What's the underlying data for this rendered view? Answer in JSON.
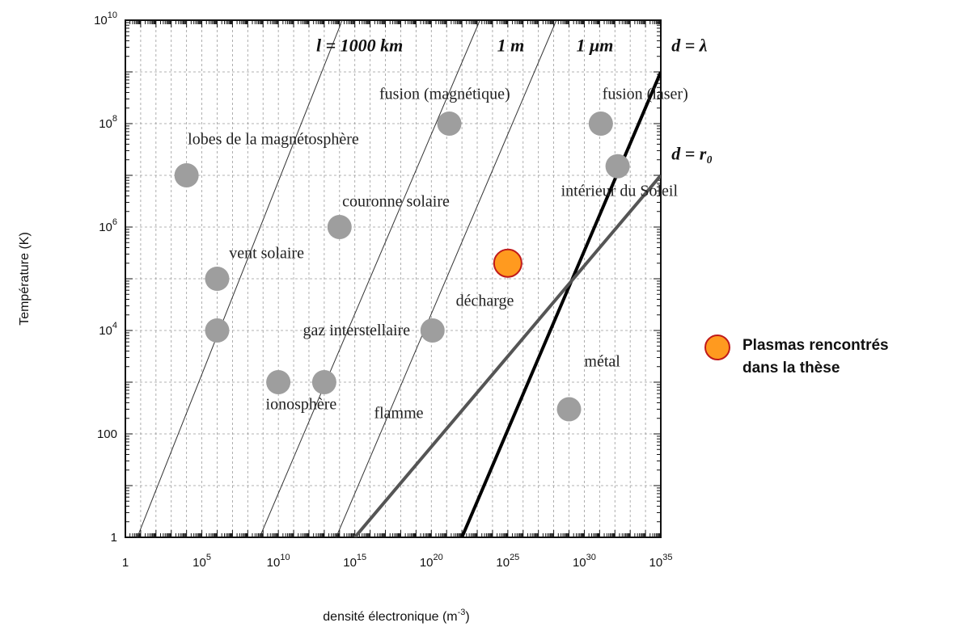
{
  "chart_data": {
    "type": "scatter",
    "xlabel": "densité électronique (m",
    "xlabel_sup": "-3",
    "xlabel_close": ")",
    "ylabel": "Température (K)",
    "x_scale": "log",
    "y_scale": "log",
    "xlim": [
      1,
      1e+35
    ],
    "ylim": [
      1,
      10000000000.0
    ],
    "grid": true,
    "x_ticks": [
      {
        "value": 1,
        "base": "1",
        "sup": ""
      },
      {
        "value": 100000.0,
        "base": "10",
        "sup": "5"
      },
      {
        "value": 10000000000.0,
        "base": "10",
        "sup": "10"
      },
      {
        "value": 1000000000000000.0,
        "base": "10",
        "sup": "15"
      },
      {
        "value": 1e+20,
        "base": "10",
        "sup": "20"
      },
      {
        "value": 1e+25,
        "base": "10",
        "sup": "25"
      },
      {
        "value": 1e+30,
        "base": "10",
        "sup": "30"
      },
      {
        "value": 1e+35,
        "base": "10",
        "sup": "35"
      }
    ],
    "y_ticks": [
      {
        "value": 1,
        "base": "1",
        "sup": ""
      },
      {
        "value": 100,
        "base": "100",
        "sup": ""
      },
      {
        "value": 10000.0,
        "base": "10",
        "sup": "4"
      },
      {
        "value": 1000000.0,
        "base": "10",
        "sup": "6"
      },
      {
        "value": 100000000.0,
        "base": "10",
        "sup": "8"
      },
      {
        "value": 10000000000.0,
        "base": "10",
        "sup": "10"
      }
    ],
    "points": [
      {
        "label": "lobes de la magnétosphère",
        "x": 10000.0,
        "y": 10000000.0,
        "highlight": false
      },
      {
        "label": "couronne solaire",
        "x": 100000000000000.0,
        "y": 1000000.0,
        "highlight": false
      },
      {
        "label": "vent solaire",
        "x": 1000000.0,
        "y": 100000.0,
        "highlight": false
      },
      {
        "label": "gaz interstellaire",
        "x": 1000000.0,
        "y": 10000.0,
        "highlight": false
      },
      {
        "label": "ionosphère",
        "x": 10000000000.0,
        "y": 1000.0,
        "highlight": false
      },
      {
        "label": "flamme",
        "x": 10000000000000.0,
        "y": 1000.0,
        "highlight": false
      },
      {
        "label": "fusion (magnétique)",
        "x": 1.5e+21,
        "y": 100000000.0,
        "highlight": false
      },
      {
        "label": "fusion (laser)",
        "x": 1.2e+31,
        "y": 100000000.0,
        "highlight": false
      },
      {
        "label": "intérieur du Soleil",
        "x": 1.5e+32,
        "y": 15000000.0,
        "highlight": false
      },
      {
        "label": "décharge",
        "x": 1.2e+20,
        "y": 10000.0,
        "highlight": false
      },
      {
        "label": "métal",
        "x": 1e+29,
        "y": 300,
        "highlight": false
      },
      {
        "label": "",
        "x": 1e+25,
        "y": 200000.0,
        "highlight": true
      }
    ],
    "annotations": [
      {
        "text": "lobes de la magnétosphère",
        "x": 12000.0,
        "y": 40000000.0
      },
      {
        "text": "couronne solaire",
        "x": 150000000000000.0,
        "y": 2500000.0
      },
      {
        "text": "vent solaire",
        "x": 6000000.0,
        "y": 250000.0
      },
      {
        "text": "gaz interstellaire",
        "x": 400000000000.0,
        "y": 8000.0
      },
      {
        "text": "ionosphère",
        "x": 1500000000.0,
        "y": 300.0
      },
      {
        "text": "flamme",
        "x": 1.8e+16,
        "y": 200.0
      },
      {
        "text": "fusion (magnétique)",
        "x": 4e+16,
        "y": 300000000.0
      },
      {
        "text": "fusion (laser)",
        "x": 1.5e+31,
        "y": 300000000.0
      },
      {
        "text": "intérieur du Soleil",
        "x": 3e+28,
        "y": 4000000.0
      },
      {
        "text": "décharge",
        "x": 4e+21,
        "y": 30000.0
      },
      {
        "text": "métal",
        "x": 1e+30,
        "y": 2000.0
      }
    ],
    "lines": [
      {
        "label": "l = 1000 km",
        "x": [
          6,
          150000000000000.0
        ],
        "y": [
          1,
          10000000000.0
        ],
        "color": "#333333",
        "width": 1
      },
      {
        "label": "1 m",
        "x": [
          600000000.0,
          1.5e+23
        ],
        "y": [
          1,
          10000000000.0
        ],
        "color": "#333333",
        "width": 1
      },
      {
        "label": "1 μm",
        "x": [
          60000000000000.0,
          1.5e+28
        ],
        "y": [
          1,
          10000000000.0
        ],
        "color": "#333333",
        "width": 1
      },
      {
        "label": "d = λ",
        "x": [
          1e+22,
          1e+35
        ],
        "y": [
          1,
          1000000000.0
        ],
        "color": "#000000",
        "width": 4
      },
      {
        "label": "d = r₀",
        "x": [
          1000000000000000.0,
          1e+35
        ],
        "y": [
          1,
          10000000.0
        ],
        "color": "#555555",
        "width": 4
      }
    ],
    "line_labels": [
      {
        "text": "l = 1000 km",
        "x": 3000000000000.0,
        "y": 2500000000.0
      },
      {
        "text": "1 m",
        "x": 2e+24,
        "y": 2500000000.0
      },
      {
        "text": "1 μm",
        "x": 3e+29,
        "y": 2500000000.0
      },
      {
        "text": "d = λ",
        "x": 5e+35,
        "y": 2500000000.0
      },
      {
        "text": "d = r₀",
        "x": 5e+35,
        "y": 20000000.0
      }
    ],
    "colors": {
      "point": "#9e9e9e",
      "highlight_fill": "#ff9a1f",
      "highlight_stroke": "#c01a1a",
      "grid": "#9a9a9a"
    },
    "legend": {
      "placement": "right",
      "lines": [
        "Plasmas rencontrés",
        "dans la thèse"
      ]
    }
  }
}
